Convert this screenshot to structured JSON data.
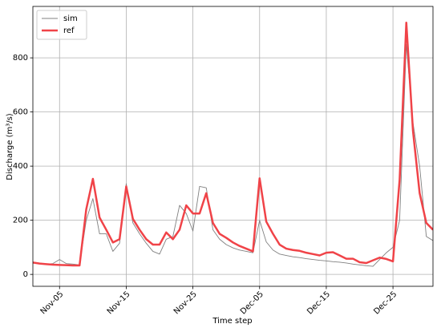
{
  "chart_data": {
    "type": "line",
    "xlabel": "Time step",
    "ylabel": "Discharge (m³/s)",
    "x": [
      0,
      1,
      2,
      3,
      4,
      5,
      6,
      7,
      8,
      9,
      10,
      11,
      12,
      13,
      14,
      15,
      16,
      17,
      18,
      19,
      20,
      21,
      22,
      23,
      24,
      25,
      26,
      27,
      28,
      29,
      30,
      31,
      32,
      33,
      34,
      35,
      36,
      37,
      38,
      39,
      40,
      41,
      42,
      43,
      44,
      45,
      46,
      47,
      48,
      49,
      50,
      51,
      52,
      53,
      54,
      55,
      56,
      57,
      58,
      59,
      60
    ],
    "series": [
      {
        "name": "sim",
        "color": "#808080",
        "width": 0.9,
        "values": [
          45,
          40,
          38,
          40,
          55,
          40,
          38,
          35,
          200,
          280,
          150,
          150,
          85,
          115,
          335,
          190,
          150,
          115,
          85,
          75,
          130,
          140,
          255,
          225,
          160,
          325,
          320,
          165,
          130,
          110,
          98,
          90,
          85,
          80,
          200,
          120,
          90,
          75,
          70,
          65,
          62,
          58,
          55,
          52,
          50,
          47,
          45,
          42,
          38,
          35,
          32,
          30,
          55,
          80,
          100,
          200,
          850,
          560,
          400,
          140,
          125
        ]
      },
      {
        "name": "ref",
        "color": "#f04348",
        "width": 2.5,
        "values": [
          44,
          40,
          38,
          36,
          35,
          34,
          33,
          33,
          240,
          353,
          210,
          165,
          118,
          130,
          325,
          205,
          165,
          130,
          110,
          110,
          155,
          130,
          165,
          255,
          225,
          225,
          300,
          190,
          150,
          135,
          118,
          105,
          95,
          85,
          355,
          195,
          150,
          110,
          95,
          90,
          87,
          80,
          75,
          70,
          80,
          82,
          70,
          58,
          58,
          45,
          42,
          52,
          62,
          57,
          48,
          350,
          930,
          530,
          300,
          190,
          165
        ]
      }
    ],
    "xlim": [
      0,
      60
    ],
    "ylim": [
      -44,
      990
    ],
    "xticks": [
      {
        "value": 4,
        "label": "Nov-05"
      },
      {
        "value": 14,
        "label": "Nov-15"
      },
      {
        "value": 24,
        "label": "Nov-25"
      },
      {
        "value": 34,
        "label": "Dec-05"
      },
      {
        "value": 44,
        "label": "Dec-15"
      },
      {
        "value": 54,
        "label": "Dec-25"
      }
    ],
    "yticks": [
      0,
      200,
      400,
      600,
      800
    ],
    "grid": true,
    "legend": "upper left"
  }
}
